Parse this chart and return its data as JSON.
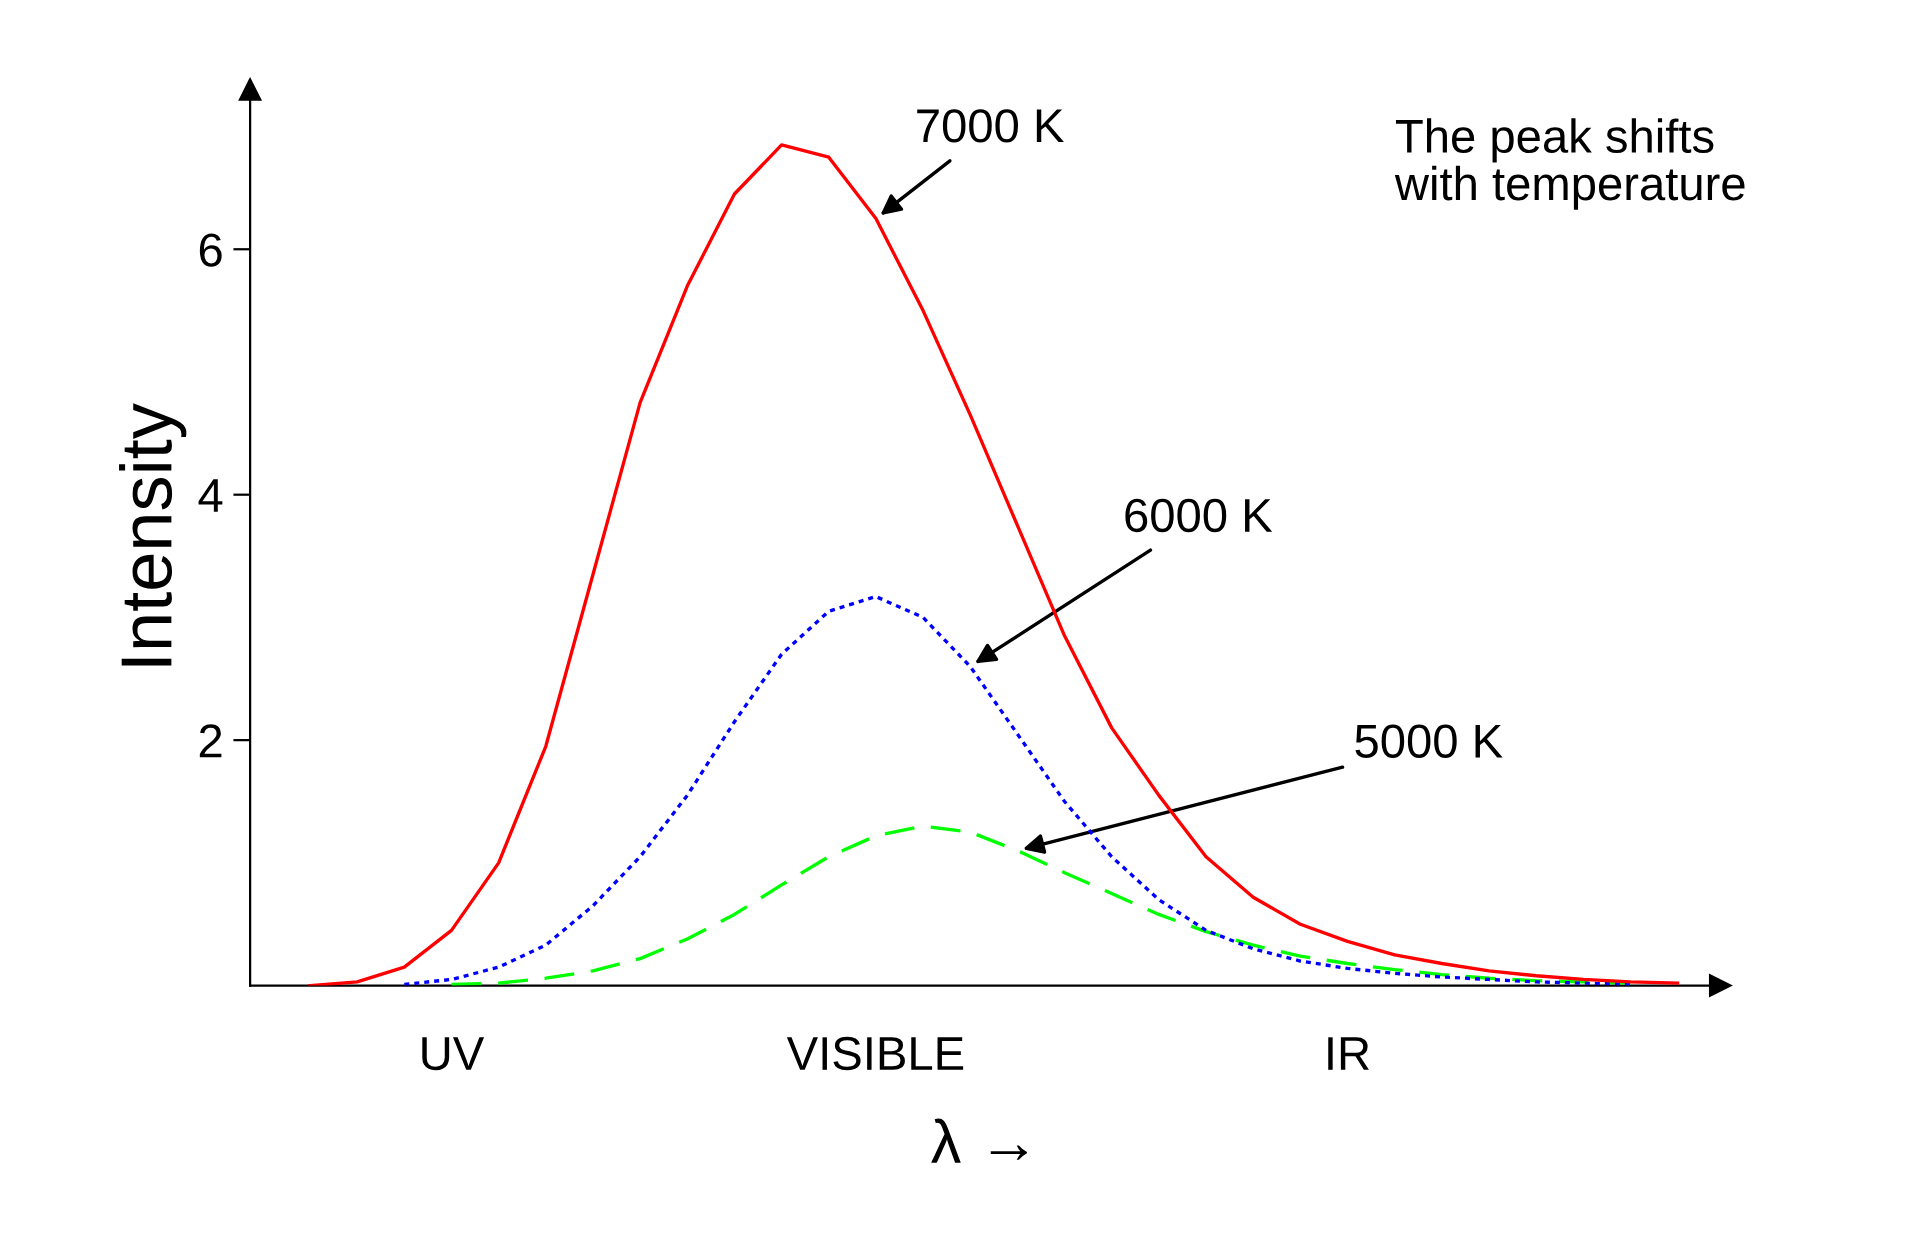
{
  "chart_data": {
    "type": "line",
    "xlabel": "λ →",
    "ylabel": "Intensity",
    "categories": [
      null,
      null,
      null,
      "UV",
      null,
      null,
      null,
      null,
      null,
      null,
      null,
      null,
      "VISIBLE",
      null,
      null,
      null,
      null,
      null,
      null,
      null,
      null,
      null,
      "IR",
      null,
      null,
      null,
      null,
      null,
      null,
      null
    ],
    "ylim": [
      0,
      7.3
    ],
    "yticks": [
      2,
      4,
      6
    ],
    "grid": false,
    "legend": false,
    "marker": "none",
    "series": [
      {
        "name": "7000 K",
        "color": "#ff0000",
        "line_style": "solid",
        "values": [
          0,
          0.03,
          0.15,
          0.45,
          1.0,
          1.95,
          3.35,
          4.75,
          5.7,
          6.45,
          6.85,
          6.75,
          6.25,
          5.5,
          4.65,
          3.75,
          2.85,
          2.1,
          1.55,
          1.05,
          0.72,
          0.5,
          0.36,
          0.25,
          0.18,
          0.12,
          0.08,
          0.05,
          0.03,
          0.02
        ]
      },
      {
        "name": "6000 K",
        "color": "#0000ff",
        "line_style": "dotted",
        "values": [
          null,
          null,
          0.01,
          0.05,
          0.15,
          0.33,
          0.65,
          1.05,
          1.55,
          2.15,
          2.7,
          3.05,
          3.17,
          3.0,
          2.6,
          2.05,
          1.5,
          1.05,
          0.7,
          0.45,
          0.3,
          0.2,
          0.14,
          0.1,
          0.07,
          0.05,
          0.03,
          0.02,
          0.01,
          null
        ]
      },
      {
        "name": "5000 K",
        "color": "#00ff00",
        "line_style": "dashed",
        "values": [
          null,
          null,
          null,
          0.01,
          0.02,
          0.06,
          0.12,
          0.22,
          0.38,
          0.58,
          0.82,
          1.05,
          1.22,
          1.3,
          1.25,
          1.1,
          0.92,
          0.75,
          0.58,
          0.44,
          0.33,
          0.24,
          0.18,
          0.13,
          0.09,
          0.06,
          0.04,
          0.03,
          0.02,
          null
        ]
      }
    ],
    "annotations": [
      "The peak shifts\nwith temperature"
    ]
  }
}
